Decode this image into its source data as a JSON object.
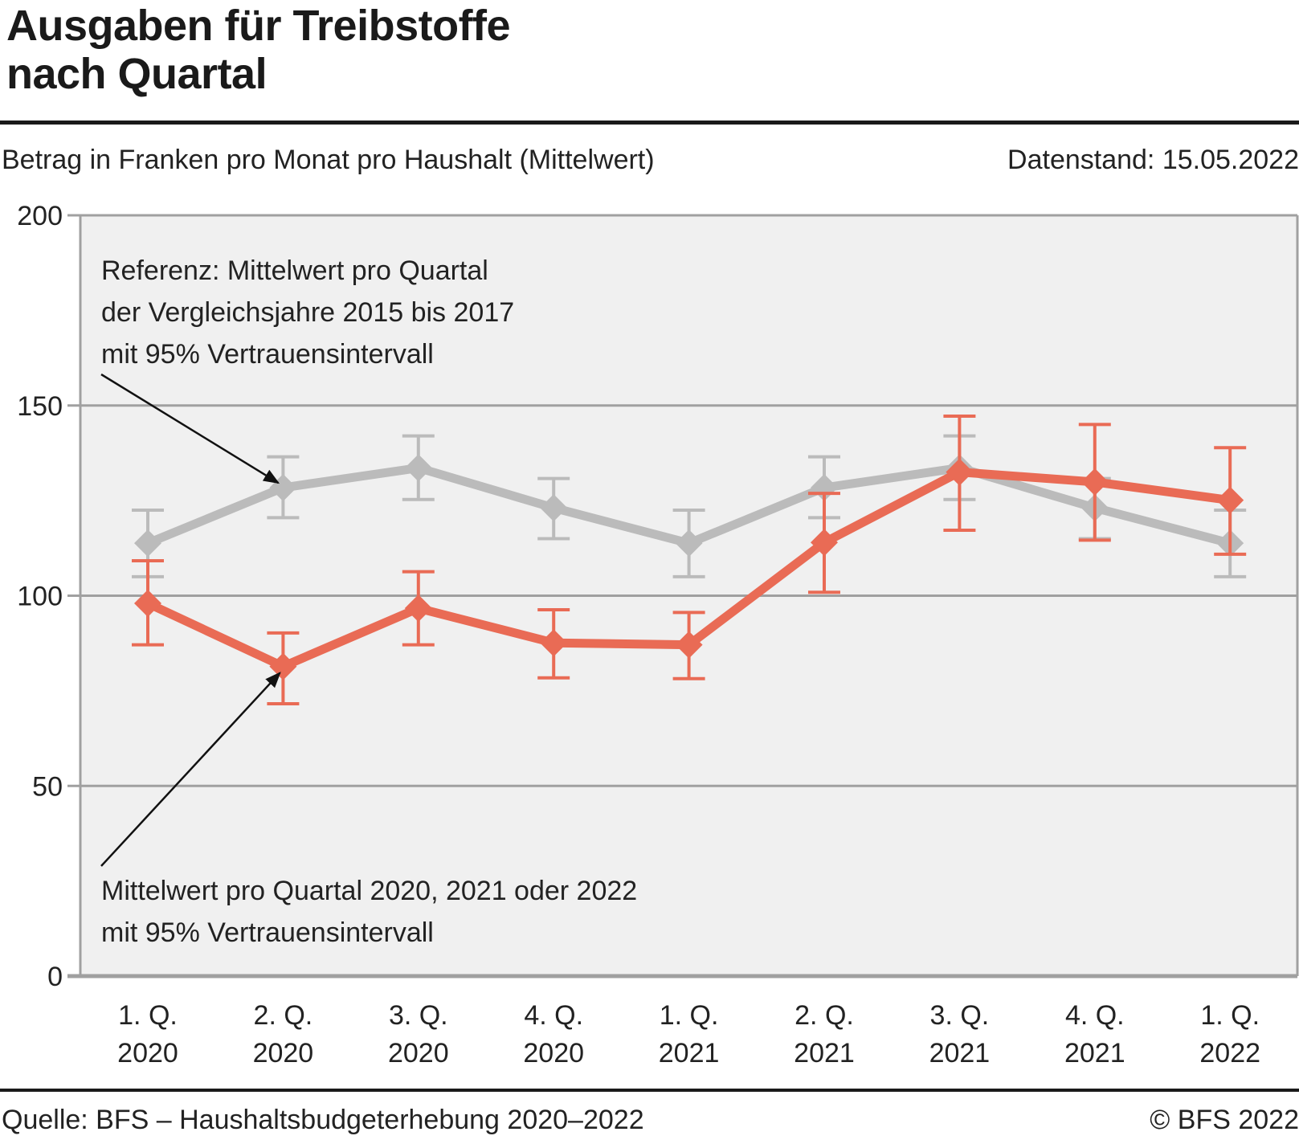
{
  "header": {
    "title_line1": "Ausgaben für Treibstoffe",
    "title_line2": "nach Quartal",
    "subtitle": "Betrag in Franken pro Monat pro Haushalt (Mittelwert)",
    "datestamp": "Datenstand: 15.05.2022"
  },
  "footer": {
    "source": "Quelle: BFS – Haushaltsbudgeterhebung 2020–2022",
    "copyright": "© BFS 2022"
  },
  "colors": {
    "reference": "#bbbbbb",
    "current": "#e96b55",
    "plot_bg": "#f0f0f0",
    "grid": "#a0a0a0"
  },
  "chart_data": {
    "type": "line",
    "title": "Ausgaben für Treibstoffe nach Quartal",
    "ylabel": "Betrag in Franken pro Monat pro Haushalt (Mittelwert)",
    "xlabel": "",
    "ylim": [
      0,
      200
    ],
    "yticks": [
      0,
      50,
      100,
      150,
      200
    ],
    "grid": true,
    "categories": [
      [
        "1. Q.",
        "2020"
      ],
      [
        "2. Q.",
        "2020"
      ],
      [
        "3. Q.",
        "2020"
      ],
      [
        "4. Q.",
        "2020"
      ],
      [
        "1. Q.",
        "2021"
      ],
      [
        "2. Q.",
        "2021"
      ],
      [
        "3. Q.",
        "2021"
      ],
      [
        "4. Q.",
        "2021"
      ],
      [
        "1. Q.",
        "2022"
      ]
    ],
    "series": [
      {
        "name": "Referenz: Mittelwert pro Quartal der Vergleichsjahre 2015 bis 2017 mit 95% Vertrauensintervall",
        "key": "reference",
        "values": [
          113.8,
          128.4,
          133.6,
          123.1,
          113.8,
          128.4,
          133.6,
          123.1,
          113.8
        ],
        "ci_low": [
          105,
          120.5,
          125.3,
          115,
          105,
          120.5,
          125.3,
          115,
          105
        ],
        "ci_high": [
          122.5,
          136.5,
          142,
          130.8,
          122.5,
          136.5,
          142,
          130.8,
          122.5
        ]
      },
      {
        "name": "Mittelwert pro Quartal 2020, 2021 oder 2022 mit 95% Vertrauensintervall",
        "key": "current",
        "values": [
          98,
          81.4,
          96.7,
          87.6,
          87.1,
          114,
          132.5,
          129.9,
          125.1
        ],
        "ci_low": [
          87.1,
          71.6,
          87.1,
          78.4,
          78.2,
          100.9,
          117.2,
          114.6,
          110.9
        ],
        "ci_high": [
          109.2,
          90.2,
          106.3,
          96.3,
          95.6,
          126.9,
          147.2,
          145,
          138.9
        ]
      }
    ],
    "annotations": [
      {
        "target_series": "reference",
        "target_index": 1,
        "lines": [
          "Referenz: Mittelwert pro Quartal",
          "der Vergleichsjahre 2015 bis 2017",
          "mit 95% Vertrauensintervall"
        ]
      },
      {
        "target_series": "current",
        "target_index": 1,
        "lines": [
          "Mittelwert pro Quartal 2020, 2021 oder 2022",
          "mit 95% Vertrauensintervall"
        ]
      }
    ]
  }
}
